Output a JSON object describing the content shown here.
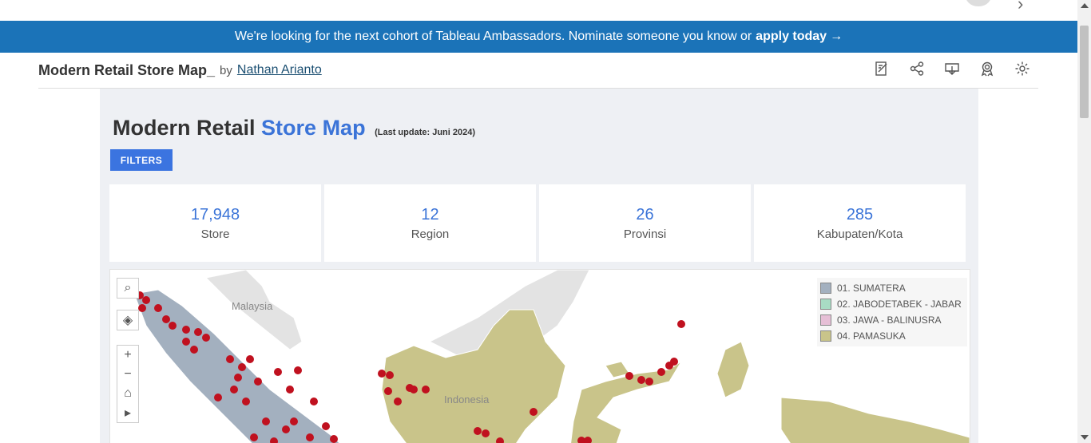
{
  "banner": {
    "text": "We're looking for the next cohort of Tableau Ambassadors. Nominate someone you know or",
    "link": "apply today",
    "arrow": "→"
  },
  "viz": {
    "title": "Modern Retail Store Map_",
    "by": "by",
    "author": "Nathan Arianto",
    "tools": [
      "edit-icon",
      "share-icon",
      "download-icon",
      "badge-icon",
      "settings-icon"
    ]
  },
  "dashboard": {
    "title_black": "Modern Retail",
    "title_blue": "Store Map",
    "last_update": "(Last update: Juni 2024)",
    "filters_label": "FILTERS",
    "kpis": [
      {
        "value": "17,948",
        "label": "Store"
      },
      {
        "value": "12",
        "label": "Region"
      },
      {
        "value": "26",
        "label": "Provinsi"
      },
      {
        "value": "285",
        "label": "Kabupaten/Kota"
      }
    ],
    "map": {
      "labels": {
        "malaysia": "Malaysia",
        "indonesia": "Indonesia"
      },
      "legend": [
        {
          "label": "01. SUMATERA",
          "color": "#a3b0bf"
        },
        {
          "label": "02. JABODETABEK - JABAR",
          "color": "#a8dcc4"
        },
        {
          "label": "03. JAWA - BALINUSRA",
          "color": "#e6bfd6"
        },
        {
          "label": "04. PAMASUKA",
          "color": "#c9c48a"
        }
      ],
      "store_color": "#c0111f",
      "controls": {
        "zoom_in": "+",
        "zoom_out": "−"
      }
    }
  }
}
